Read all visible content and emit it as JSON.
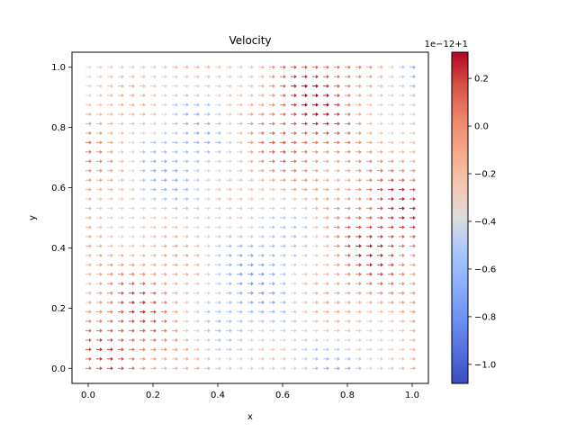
{
  "chart_data": {
    "type": "quiver",
    "title": "Velocity",
    "xlabel": "x",
    "ylabel": "y",
    "xlim": [
      -0.05,
      1.05
    ],
    "ylim": [
      -0.05,
      1.05
    ],
    "xticks": [
      "0.0",
      "0.2",
      "0.4",
      "0.6",
      "0.8",
      "1.0"
    ],
    "yticks": [
      "0.0",
      "0.2",
      "0.4",
      "0.6",
      "0.8",
      "1.0"
    ],
    "grid_x": {
      "start": 0.0,
      "end": 1.0,
      "count": 31
    },
    "grid_y": {
      "start": 0.0,
      "end": 1.0,
      "count": 33
    },
    "vector_direction": "+x",
    "colorbar": {
      "colormap": "coolwarm",
      "offset_label": "1e−12+1",
      "range": [
        -1.08,
        0.31
      ],
      "ticks": [
        "−1.0",
        "−0.8",
        "−0.6",
        "−0.4",
        "−0.2",
        "0.0",
        "0.2"
      ],
      "tick_values": [
        -1.0,
        -0.8,
        -0.6,
        -0.4,
        -0.2,
        0.0,
        0.2
      ]
    },
    "colors": {
      "coolwarm_low": "#3b4cc0",
      "coolwarm_mid": "#dddddd",
      "coolwarm_high": "#b40426"
    }
  }
}
